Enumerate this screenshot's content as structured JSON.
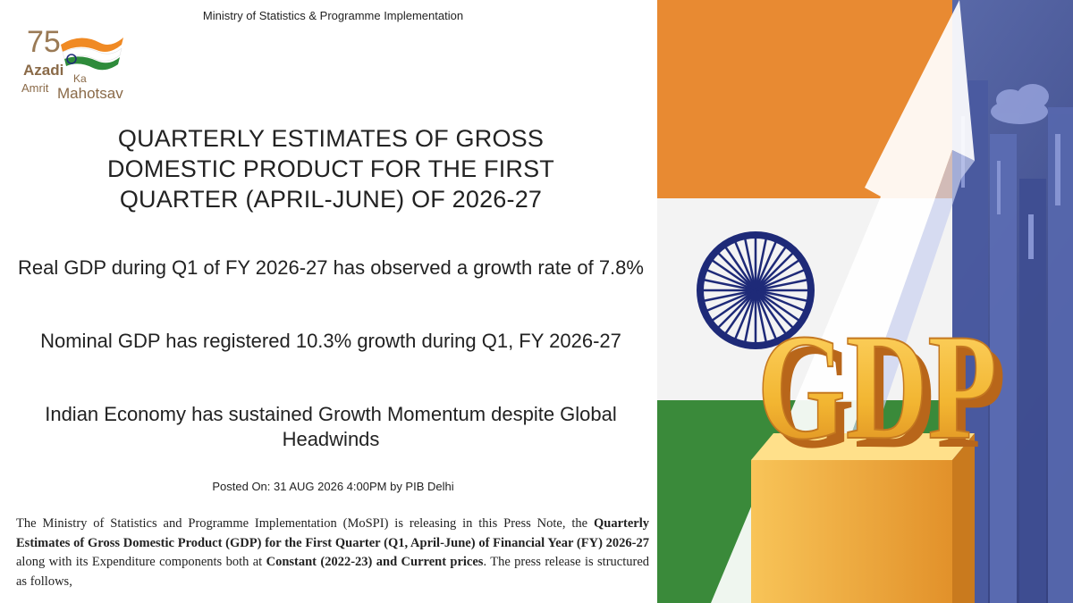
{
  "header": {
    "ministry": "Ministry of Statistics & Programme Implementation"
  },
  "logo": {
    "number": "75",
    "line1": "Azadi",
    "line2a": "Ka",
    "line2b": "Amrit",
    "line3": "Mahotsav"
  },
  "title": "QUARTERLY ESTIMATES OF GROSS DOMESTIC PRODUCT FOR THE FIRST QUARTER (APRIL-JUNE) OF 2026-27",
  "highlights": [
    "Real GDP during Q1 of FY 2026-27 has observed a growth rate of 7.8%",
    "Nominal GDP has registered 10.3% growth during Q1, FY 2026-27",
    "Indian Economy has sustained Growth Momentum despite Global Headwinds"
  ],
  "posted": "Posted On: 31 AUG 2026 4:00PM by PIB Delhi",
  "body": {
    "p1": "The Ministry of Statistics and Programme Implementation (MoSPI) is releasing in this Press Note, the ",
    "b1": "Quarterly Estimates of Gross Domestic Product (GDP) for the First Quarter (Q1, April-June) of Financial Year (FY) 2026-27",
    "p2": " along with its Expenditure components both at ",
    "b2": "Constant (2022-23) and Current prices",
    "p3": ". The press release is structured as follows,"
  },
  "illustration": {
    "label": "GDP",
    "colors": {
      "saffron": "#E88A32",
      "white": "#F3F3F3",
      "green": "#3A8A3A",
      "chakra": "#1E2A78",
      "gold": "#F2B531",
      "sky": "#4F64A8"
    }
  }
}
